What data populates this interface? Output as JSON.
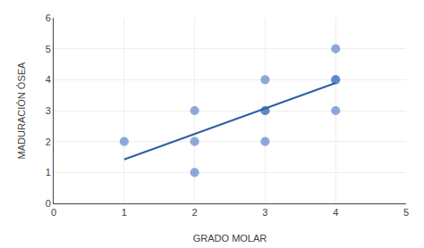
{
  "chart_data": {
    "type": "scatter",
    "xlabel": "GRADO MOLAR",
    "ylabel": "MADURACIÓN ÓSEA",
    "series": [
      {
        "type": "scatter",
        "color": "#4472C4",
        "x": [
          1,
          2,
          2,
          2,
          3,
          3,
          3,
          3,
          4,
          4,
          4,
          4
        ],
        "values": [
          2,
          1,
          2,
          3,
          2,
          3,
          3,
          4,
          3,
          4,
          4,
          5
        ]
      },
      {
        "type": "line",
        "color": "#2E5FA3",
        "x": [
          1,
          4
        ],
        "values": [
          1.4198473282442747,
          3.8931297709923665
        ]
      }
    ],
    "xlim": [
      0,
      5
    ],
    "ylim": [
      0,
      6
    ],
    "xticks": [
      0,
      1,
      2,
      3,
      4,
      5
    ],
    "yticks": [
      0,
      1,
      2,
      3,
      4,
      5,
      6
    ],
    "grid": true
  }
}
